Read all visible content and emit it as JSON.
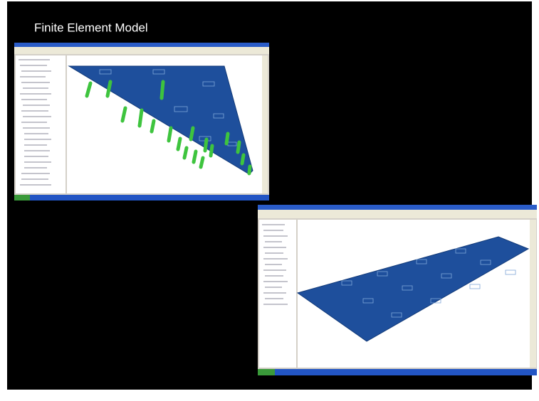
{
  "header": {
    "title": "Finite Element Model"
  }
}
